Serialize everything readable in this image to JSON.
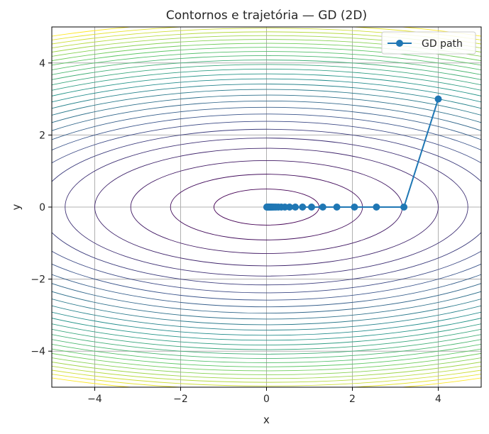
{
  "chart_data": {
    "type": "line",
    "title": "Contornos e trajetória — GD (2D)",
    "xlabel": "x",
    "ylabel": "y",
    "xlim": [
      -5,
      5
    ],
    "ylim": [
      -5,
      5
    ],
    "xticks": [
      -4,
      -2,
      0,
      2,
      4
    ],
    "yticks": [
      -4,
      -2,
      0,
      2,
      4
    ],
    "xtick_labels": [
      "−4",
      "−2",
      "0",
      "2",
      "4"
    ],
    "ytick_labels": [
      "−4",
      "−2",
      "0",
      "2",
      "4"
    ],
    "grid": true,
    "legend": {
      "placement": "top-right",
      "entries": [
        "GD path"
      ]
    },
    "contours": {
      "function": "x^2 + 6*y^2",
      "levels": [
        1.5,
        5,
        10,
        16,
        22,
        28,
        34,
        40,
        46,
        52,
        58,
        64,
        70,
        76,
        82,
        88,
        94,
        100,
        106,
        112,
        118,
        124,
        130,
        136,
        142,
        148,
        154,
        160
      ],
      "colormap": [
        "#440154",
        "#3b528b",
        "#21918c",
        "#5ec962",
        "#fde725"
      ]
    },
    "series": [
      {
        "name": "GD path",
        "color": "#1f77b4",
        "marker": "circle",
        "x": [
          4.0,
          3.2,
          2.56,
          2.048,
          1.638,
          1.311,
          1.049,
          0.839,
          0.671,
          0.537,
          0.429,
          0.344,
          0.275,
          0.22,
          0.176,
          0.141,
          0.113,
          0.09,
          0.072,
          0.058,
          0.046,
          0.037,
          0.03,
          0.024,
          0.019,
          0.015,
          0.012,
          0.01,
          0.008
        ],
        "y": [
          3.0,
          0.0,
          0.0,
          0.0,
          0.0,
          0.0,
          0.0,
          0.0,
          0.0,
          0.0,
          0.0,
          0.0,
          0.0,
          0.0,
          0.0,
          0.0,
          0.0,
          0.0,
          0.0,
          0.0,
          0.0,
          0.0,
          0.0,
          0.0,
          0.0,
          0.0,
          0.0,
          0.0,
          0.0
        ]
      }
    ]
  }
}
